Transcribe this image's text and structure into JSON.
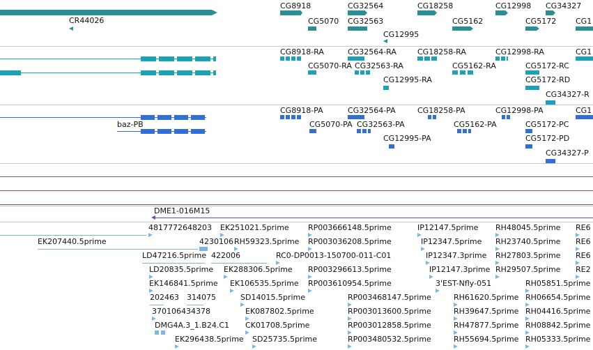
{
  "genes_track": {
    "labels": [
      "CG8918",
      "CG32564",
      "CG18258",
      "CG12998",
      "CG34327",
      "CR44026",
      "CG5070",
      "CG32563",
      "CG5162",
      "CG5172",
      "CG1",
      "CG12995"
    ]
  },
  "transcripts_track": {
    "labels": [
      "CG8918-RA",
      "CG32564-RA",
      "CG18258-RA",
      "CG12998-RA",
      "CG1",
      "CG5070-RA",
      "CG32563-RA",
      "CG5162-RA",
      "CG5172-RC",
      "CG5172-RD",
      "CG12995-RA",
      "CG34327-R"
    ]
  },
  "proteins_track": {
    "labels": [
      "CG8918-PA",
      "CG32564-PA",
      "CG18258-PA",
      "CG12998-PA",
      "CG1",
      "baz-PB",
      "CG5070-PA",
      "CG32563-PA",
      "CG5162-PA",
      "CG5172-PC",
      "CG5172-PD",
      "CG12995-PA",
      "CG34327-P"
    ]
  },
  "clone_track": {
    "labels": [
      "DME1-016M15"
    ]
  },
  "est_track": {
    "labels": [
      "4817772648203",
      "EK251021.5prime",
      "RP003666148.5prime",
      "IP12147.5prime",
      "RH48045.5prime",
      "RE6",
      "EK207440.5prime",
      "4230106",
      "RH59323.5prime",
      "RP003036208.5prime",
      "IP12347.5prime",
      "RH23740.5prime",
      "RE6",
      "LD47216.5prime",
      "422006",
      "RC0-DP0013-150700-011-C01",
      "IP12347.3prime",
      "RH27803.5prime",
      "RE6",
      "LD20835.5prime",
      "EK288306.5prime",
      "RP003296613.5prime",
      "IP12147.3prime",
      "RH29507.5prime",
      "RE2",
      "EK146841.5prime",
      "EK106535.5prime",
      "RP003610954.5prime",
      "3'EST-Nfly-051",
      "RH05851.5prime",
      "202463",
      "314075",
      "SD14015.5prime",
      "RP003468147.5prime",
      "RH61620.5prime",
      "RH06654.5prime",
      "370106434378",
      "EK087802.5prime",
      "RP003013600.5prime",
      "RH39647.5prime",
      "RH04416.5prime",
      "DMG4A.3_1.B24.C1",
      "CK01708.5prime",
      "RP003012858.5prime",
      "RH47877.5prime",
      "RH08842.5prime",
      "EK296438.5prime",
      "SD25735.5prime",
      "RP003480532.5prime",
      "RH55694.5prime",
      "RH05333.5prime"
    ]
  },
  "colors": {
    "gene": "#2a8f94",
    "transcript": "#1aa3b8",
    "protein": "#2f6fd6",
    "clone": "#7a4aa8",
    "est": "#7db6e0",
    "separator": "#c9c9c9"
  }
}
